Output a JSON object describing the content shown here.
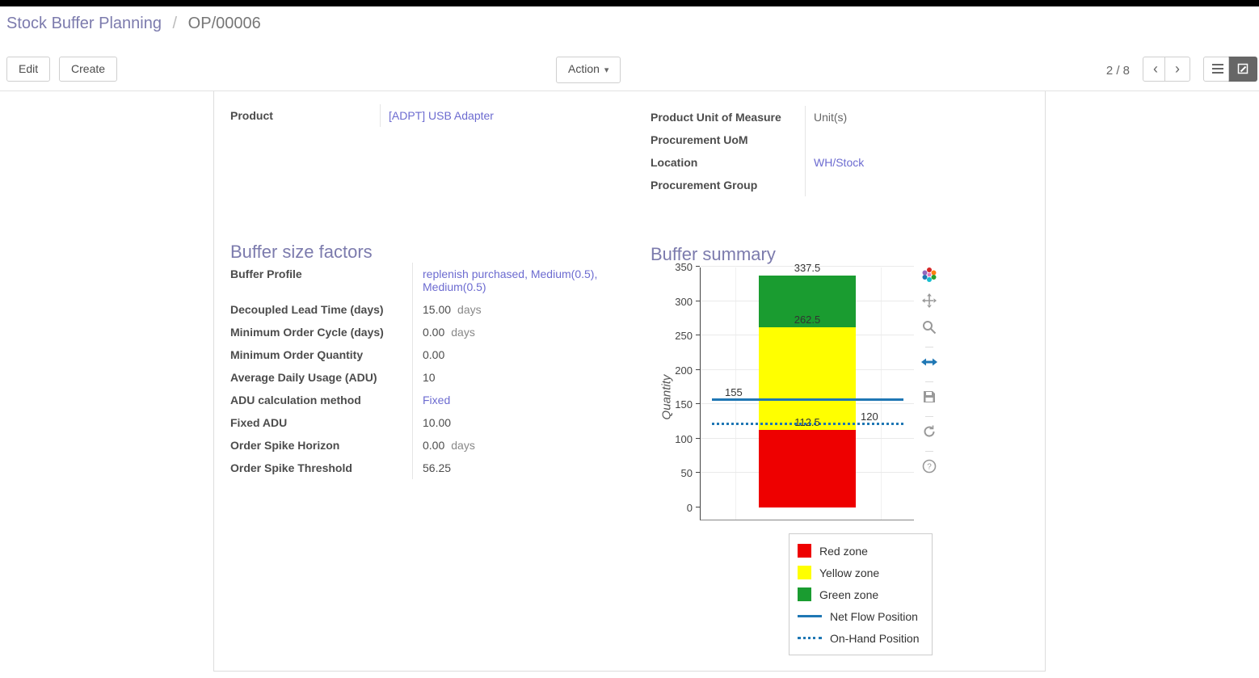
{
  "breadcrumb": {
    "parent": "Stock Buffer Planning",
    "separator": "/",
    "current": "OP/00006"
  },
  "control_panel": {
    "edit": "Edit",
    "create": "Create",
    "action": "Action",
    "pager": "2 / 8",
    "prev_glyph": "‹",
    "next_glyph": "›"
  },
  "form": {
    "product": {
      "label": "Product",
      "value": "[ADPT] USB Adapter"
    },
    "right_fields": [
      {
        "label": "Product Unit of Measure",
        "value": "Unit(s)"
      },
      {
        "label": "Procurement UoM",
        "value": ""
      },
      {
        "label": "Location",
        "value": "WH/Stock"
      },
      {
        "label": "Procurement Group",
        "value": ""
      }
    ],
    "sections": {
      "factors": "Buffer size factors",
      "summary": "Buffer summary"
    },
    "factors_rows": [
      {
        "label": "Buffer Profile",
        "value": "replenish purchased, Medium(0.5), Medium(0.5)"
      },
      {
        "label": "Decoupled Lead Time (days)",
        "value": "15.00",
        "suffix": "days"
      },
      {
        "label": "Minimum Order Cycle (days)",
        "value": "0.00",
        "suffix": "days"
      },
      {
        "label": "Minimum Order Quantity",
        "value": "0.00"
      },
      {
        "label": "Average Daily Usage (ADU)",
        "value": "10"
      },
      {
        "label": "ADU calculation method",
        "value": "Fixed"
      },
      {
        "label": "Fixed ADU",
        "value": "10.00"
      },
      {
        "label": "Order Spike Horizon",
        "value": "0.00",
        "suffix": "days"
      },
      {
        "label": "Order Spike Threshold",
        "value": "56.25"
      }
    ]
  },
  "chart_data": {
    "type": "bar",
    "title": "",
    "ylabel": "Quantity",
    "ylim": [
      0,
      350
    ],
    "ytick_step": 50,
    "grid": true,
    "bar_segments": [
      {
        "name": "Red zone",
        "value": 112.5,
        "top": 112.5,
        "color": "#ee0000",
        "label": "112.5"
      },
      {
        "name": "Yellow zone",
        "value": 150,
        "top": 262.5,
        "color": "#ffff00",
        "label": "262.5"
      },
      {
        "name": "Green zone",
        "value": 75,
        "top": 337.5,
        "color": "#1a9c30",
        "label": "337.5"
      }
    ],
    "hlines": [
      {
        "name": "Net Flow Position",
        "value": 155,
        "style": "solid",
        "color": "#1f77b4",
        "label": "155",
        "label_side": "left"
      },
      {
        "name": "On-Hand Position",
        "value": 120,
        "style": "dotted",
        "color": "#1f77b4",
        "label": "120",
        "label_side": "right"
      }
    ],
    "legend": [
      {
        "label": "Red zone",
        "swatch": "square",
        "color": "#ee0000"
      },
      {
        "label": "Yellow zone",
        "swatch": "square",
        "color": "#ffff00"
      },
      {
        "label": "Green zone",
        "swatch": "square",
        "color": "#1a9c30"
      },
      {
        "label": "Net Flow Position",
        "swatch": "line",
        "color": "#1f77b4"
      },
      {
        "label": "On-Hand Position",
        "swatch": "dotted",
        "color": "#1f77b4"
      }
    ],
    "legend_position": "bottom-right",
    "toolbar_icons": [
      "plotly-logo",
      "pan",
      "zoom",
      "autoscale",
      "save",
      "reset",
      "help"
    ]
  }
}
